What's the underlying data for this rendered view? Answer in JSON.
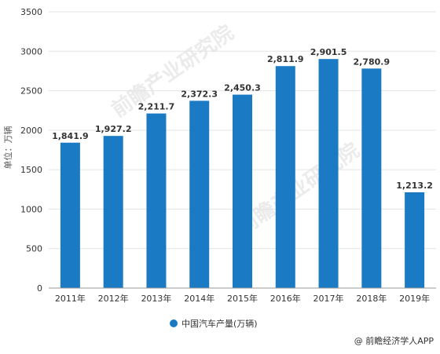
{
  "chart_data": {
    "type": "bar",
    "categories": [
      "2011年",
      "2012年",
      "2013年",
      "2014年",
      "2015年",
      "2016年",
      "2017年",
      "2018年",
      "2019年"
    ],
    "series": [
      {
        "name": "中国汽车产量(万辆)",
        "values": [
          1841.9,
          1927.2,
          2211.7,
          2372.3,
          2450.3,
          2811.9,
          2901.5,
          2780.9,
          1213.2
        ],
        "labels": [
          "1,841.9",
          "1,927.2",
          "2,211.7",
          "2,372.3",
          "2,450.3",
          "2,811.9",
          "2,901.5",
          "2,780.9",
          "1,213.2"
        ]
      }
    ],
    "ylabel": "单位：万辆",
    "ylim": [
      0,
      3500
    ],
    "yticks": [
      0,
      500,
      1000,
      1500,
      2000,
      2500,
      3000,
      3500
    ],
    "grid": true,
    "legend_position": "bottom",
    "bar_color": "#1a7bc4"
  },
  "watermark": "前瞻产业研究院",
  "credit": "@ 前瞻经济学人APP"
}
